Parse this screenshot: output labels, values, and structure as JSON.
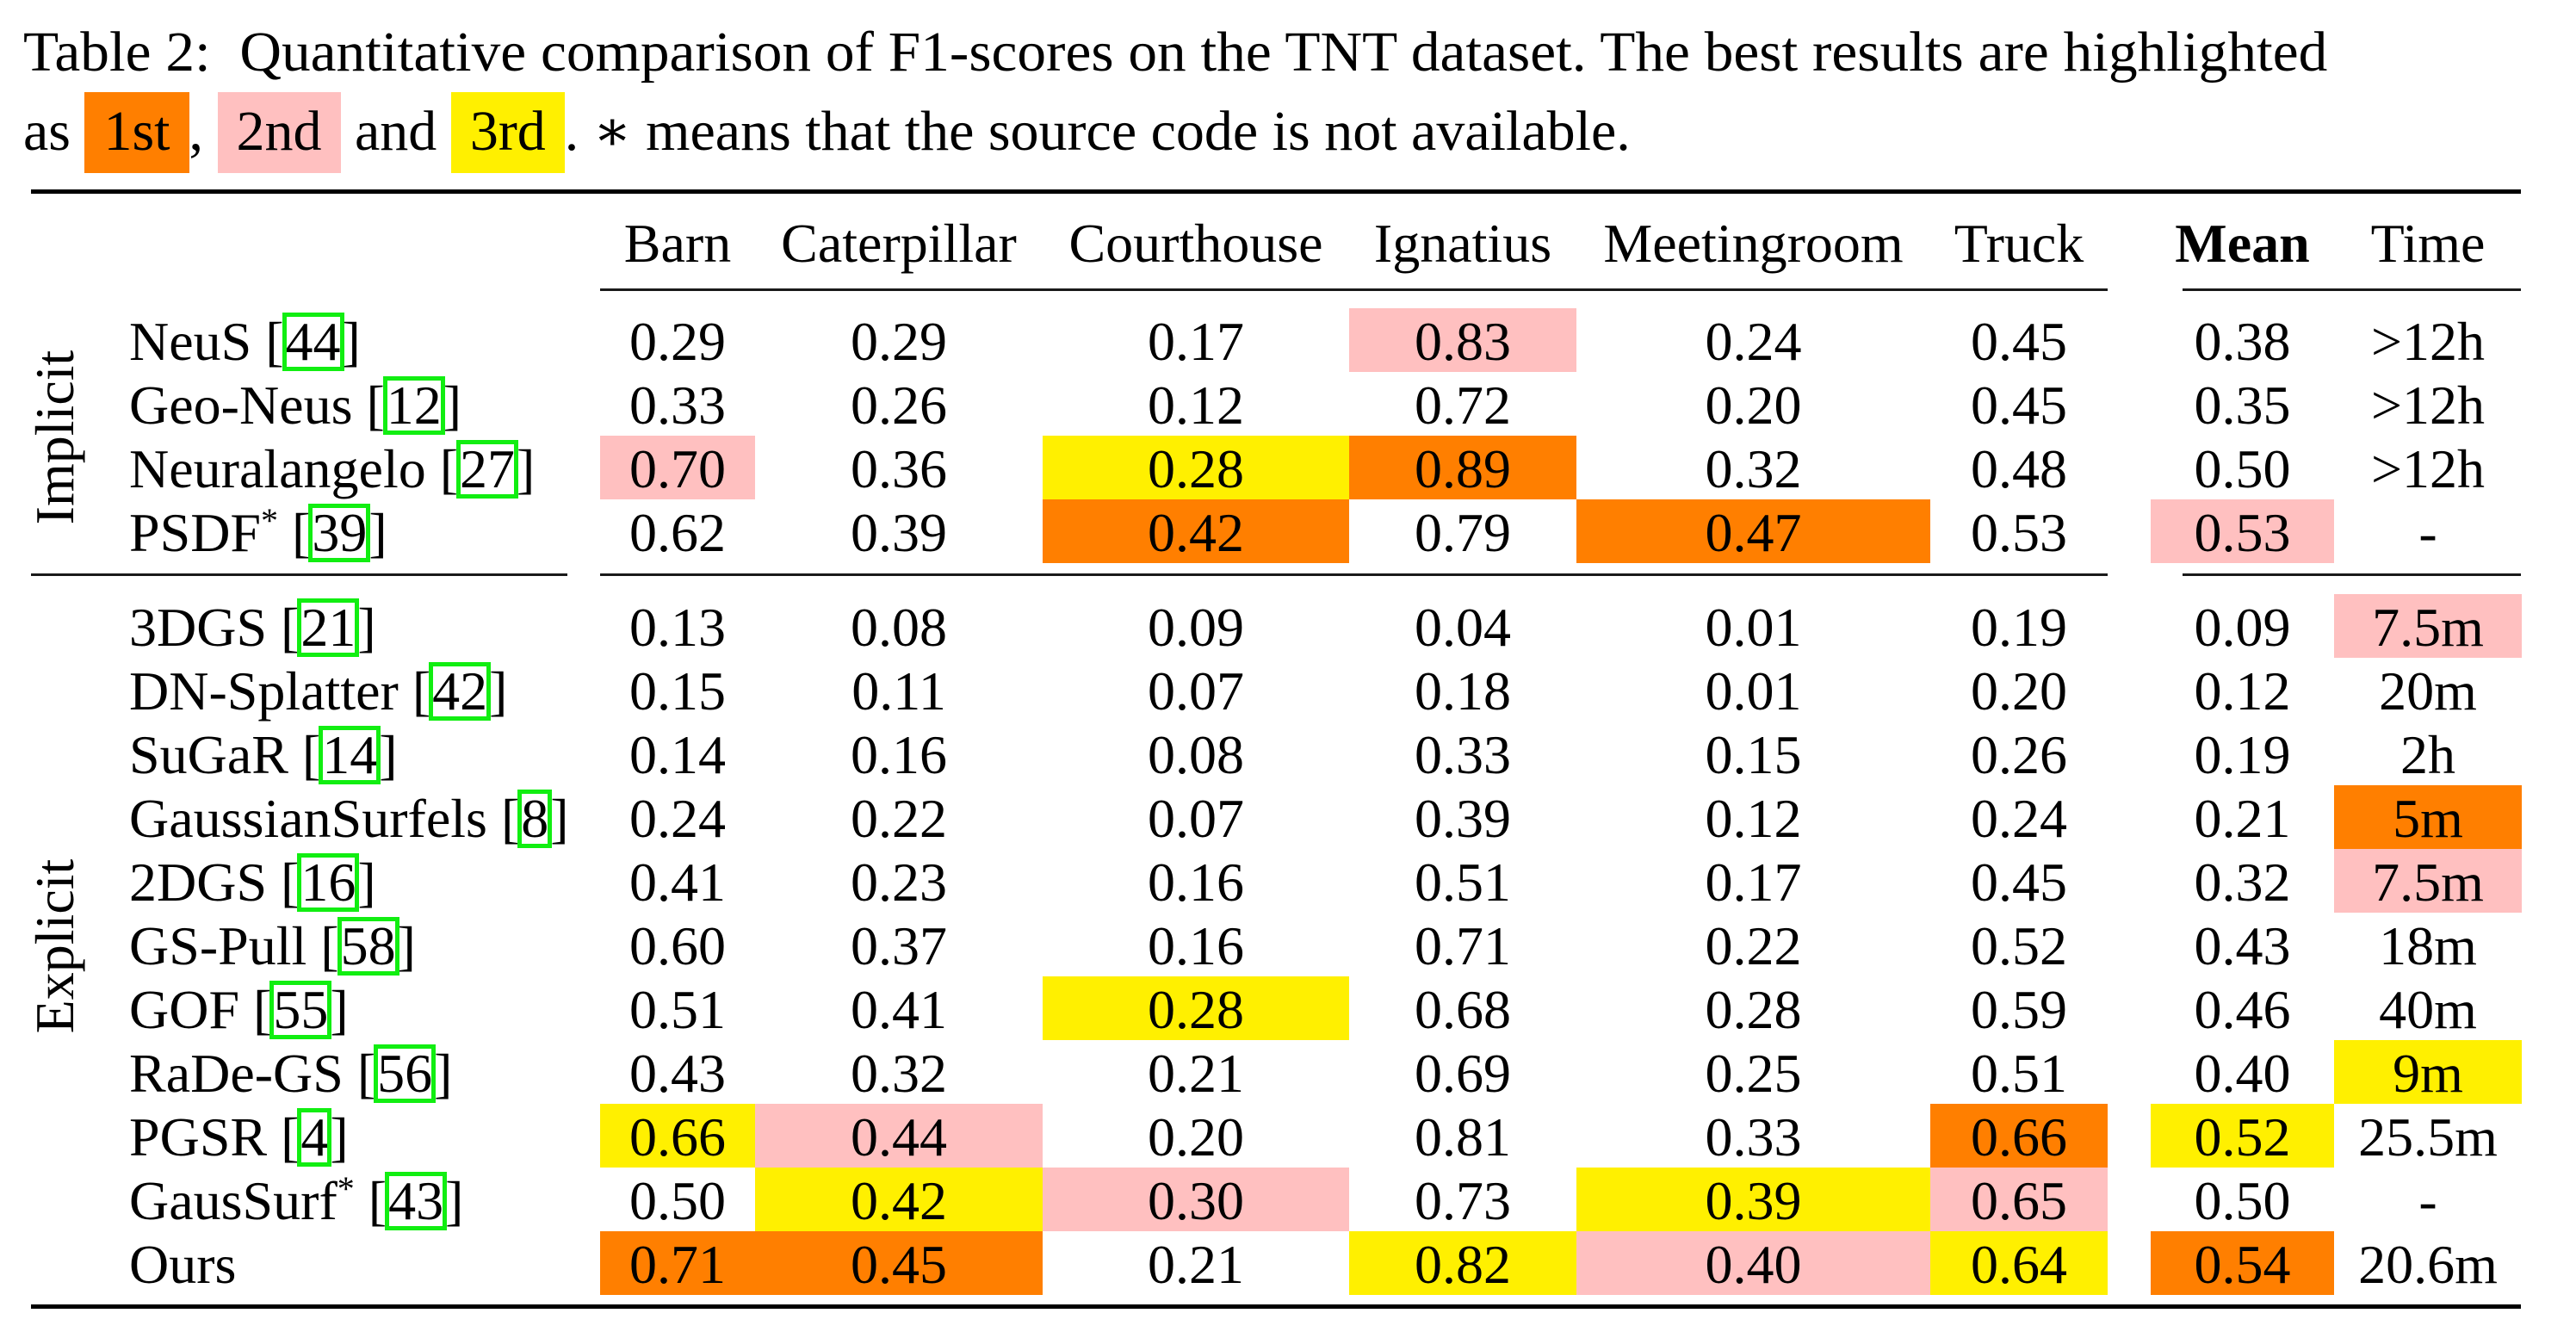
{
  "caption": {
    "line1": "Table 2:  Quantitative comparison of F1-scores on the TNT dataset. The best results are highlighted",
    "line2_prefix": "as",
    "first_label": "1st",
    "comma": ",",
    "second_label": "2nd",
    "and_text": "and",
    "third_label": "3rd",
    "line2_suffix": ". ∗ means that the source code is not available."
  },
  "colors": {
    "first": "#ff7f00",
    "second": "#ffc0c0",
    "third": "#fff000",
    "citation_box": "#11ee11"
  },
  "columns": [
    "Barn",
    "Caterpillar",
    "Courthouse",
    "Ignatius",
    "Meetingroom",
    "Truck",
    "Mean",
    "Time"
  ],
  "groups": [
    {
      "label": "Implicit",
      "rows": [
        {
          "method": "NeuS",
          "star": false,
          "cite": "44",
          "values": [
            "0.29",
            "0.29",
            "0.17",
            "0.83",
            "0.24",
            "0.45",
            "0.38",
            ">12h"
          ],
          "rank": [
            0,
            0,
            0,
            2,
            0,
            0,
            0,
            0
          ]
        },
        {
          "method": "Geo-Neus",
          "star": false,
          "cite": "12",
          "values": [
            "0.33",
            "0.26",
            "0.12",
            "0.72",
            "0.20",
            "0.45",
            "0.35",
            ">12h"
          ],
          "rank": [
            0,
            0,
            0,
            0,
            0,
            0,
            0,
            0
          ]
        },
        {
          "method": "Neuralangelo",
          "star": false,
          "cite": "27",
          "values": [
            "0.70",
            "0.36",
            "0.28",
            "0.89",
            "0.32",
            "0.48",
            "0.50",
            ">12h"
          ],
          "rank": [
            2,
            0,
            3,
            1,
            0,
            0,
            0,
            0
          ]
        },
        {
          "method": "PSDF",
          "star": true,
          "cite": "39",
          "values": [
            "0.62",
            "0.39",
            "0.42",
            "0.79",
            "0.47",
            "0.53",
            "0.53",
            "-"
          ],
          "rank": [
            0,
            0,
            1,
            0,
            1,
            0,
            2,
            0
          ]
        }
      ]
    },
    {
      "label": "Explicit",
      "rows": [
        {
          "method": "3DGS",
          "star": false,
          "cite": "21",
          "values": [
            "0.13",
            "0.08",
            "0.09",
            "0.04",
            "0.01",
            "0.19",
            "0.09",
            "7.5m"
          ],
          "rank": [
            0,
            0,
            0,
            0,
            0,
            0,
            0,
            2
          ]
        },
        {
          "method": "DN-Splatter",
          "star": false,
          "cite": "42",
          "values": [
            "0.15",
            "0.11",
            "0.07",
            "0.18",
            "0.01",
            "0.20",
            "0.12",
            "20m"
          ],
          "rank": [
            0,
            0,
            0,
            0,
            0,
            0,
            0,
            0
          ]
        },
        {
          "method": "SuGaR",
          "star": false,
          "cite": "14",
          "values": [
            "0.14",
            "0.16",
            "0.08",
            "0.33",
            "0.15",
            "0.26",
            "0.19",
            "2h"
          ],
          "rank": [
            0,
            0,
            0,
            0,
            0,
            0,
            0,
            0
          ]
        },
        {
          "method": "GaussianSurfels",
          "star": false,
          "cite": "8",
          "values": [
            "0.24",
            "0.22",
            "0.07",
            "0.39",
            "0.12",
            "0.24",
            "0.21",
            "5m"
          ],
          "rank": [
            0,
            0,
            0,
            0,
            0,
            0,
            0,
            1
          ]
        },
        {
          "method": "2DGS",
          "star": false,
          "cite": "16",
          "values": [
            "0.41",
            "0.23",
            "0.16",
            "0.51",
            "0.17",
            "0.45",
            "0.32",
            "7.5m"
          ],
          "rank": [
            0,
            0,
            0,
            0,
            0,
            0,
            0,
            2
          ]
        },
        {
          "method": "GS-Pull",
          "star": false,
          "cite": "58",
          "values": [
            "0.60",
            "0.37",
            "0.16",
            "0.71",
            "0.22",
            "0.52",
            "0.43",
            "18m"
          ],
          "rank": [
            0,
            0,
            0,
            0,
            0,
            0,
            0,
            0
          ]
        },
        {
          "method": "GOF",
          "star": false,
          "cite": "55",
          "values": [
            "0.51",
            "0.41",
            "0.28",
            "0.68",
            "0.28",
            "0.59",
            "0.46",
            "40m"
          ],
          "rank": [
            0,
            0,
            3,
            0,
            0,
            0,
            0,
            0
          ]
        },
        {
          "method": "RaDe-GS",
          "star": false,
          "cite": "56",
          "values": [
            "0.43",
            "0.32",
            "0.21",
            "0.69",
            "0.25",
            "0.51",
            "0.40",
            "9m"
          ],
          "rank": [
            0,
            0,
            0,
            0,
            0,
            0,
            0,
            3
          ]
        },
        {
          "method": "PGSR",
          "star": false,
          "cite": "4",
          "values": [
            "0.66",
            "0.44",
            "0.20",
            "0.81",
            "0.33",
            "0.66",
            "0.52",
            "25.5m"
          ],
          "rank": [
            3,
            2,
            0,
            0,
            0,
            1,
            3,
            0
          ]
        },
        {
          "method": "GausSurf",
          "star": true,
          "cite": "43",
          "values": [
            "0.50",
            "0.42",
            "0.30",
            "0.73",
            "0.39",
            "0.65",
            "0.50",
            "-"
          ],
          "rank": [
            0,
            3,
            2,
            0,
            3,
            2,
            0,
            0
          ]
        },
        {
          "method": "Ours",
          "star": false,
          "cite": "",
          "values": [
            "0.71",
            "0.45",
            "0.21",
            "0.82",
            "0.40",
            "0.64",
            "0.54",
            "20.6m"
          ],
          "rank": [
            1,
            1,
            0,
            3,
            2,
            3,
            1,
            0
          ]
        }
      ]
    }
  ],
  "star_symbol": "*",
  "cite_open": "[",
  "cite_close": "]"
}
